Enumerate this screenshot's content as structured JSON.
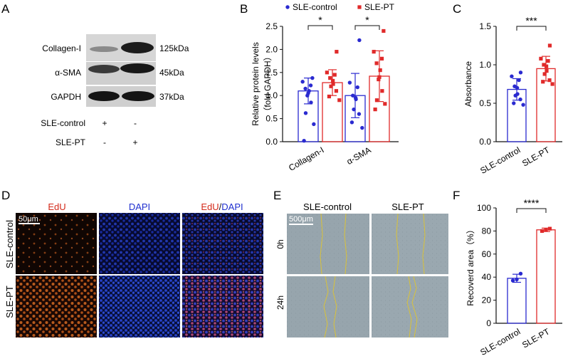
{
  "panels": {
    "a": {
      "label": "A",
      "bands": [
        {
          "name": "Collagen-I",
          "size": "125kDa"
        },
        {
          "name": "α-SMA",
          "size": "45kDa"
        },
        {
          "name": "GAPDH",
          "size": "37kDa"
        }
      ],
      "groups": [
        {
          "name": "SLE-control",
          "lane1": "+",
          "lane2": "-"
        },
        {
          "name": "SLE-PT",
          "lane1": "-",
          "lane2": "+"
        }
      ]
    },
    "b": {
      "label": "B"
    },
    "c": {
      "label": "C"
    },
    "d": {
      "label": "D",
      "col_titles": {
        "edu": "EdU",
        "dapi": "DAPI",
        "merge_edu": "EdU",
        "merge_sep": "/",
        "merge_dapi": "DAPI"
      },
      "row_labels": [
        "SLE-control",
        "SLE-PT"
      ],
      "scale_bar": "50μm"
    },
    "e": {
      "label": "E",
      "col_titles": [
        "SLE-control",
        "SLE-PT"
      ],
      "row_labels": [
        "0h",
        "24h"
      ],
      "scale_bar": "500μm"
    },
    "f": {
      "label": "F"
    }
  },
  "colors": {
    "control": "#2a2ad0",
    "pt": "#e02a2a",
    "edu": "#d42a1a",
    "dapi": "#1f2fcf",
    "wound_line": "#d9c23a"
  },
  "chart_data": [
    {
      "panel": "B",
      "type": "bar",
      "categories": [
        "Collagen-I",
        "α-SMA"
      ],
      "ylabel": "Relative protein levels",
      "ylabel2": "（fold GAPDH）",
      "ylim": [
        0,
        2.5
      ],
      "yticks": [
        "0.0",
        "0.5",
        "1.0",
        "1.5",
        "2.0",
        "2.5"
      ],
      "legend": "top",
      "series": [
        {
          "name": "SLE-control",
          "values": [
            1.1,
            1.0
          ],
          "sd": [
            0.28,
            0.48
          ],
          "points": [
            [
              1.38,
              1.3,
              1.22,
              1.15,
              1.1,
              1.05,
              1.0,
              0.85,
              0.62,
              0.38,
              0.02
            ],
            [
              2.2,
              1.28,
              1.18,
              1.0,
              0.95,
              0.92,
              0.7,
              0.6,
              0.42,
              0.3
            ]
          ]
        },
        {
          "name": "SLE-PT",
          "values": [
            1.28,
            1.42
          ],
          "sd": [
            0.28,
            0.55
          ],
          "points": [
            [
              1.95,
              1.5,
              1.45,
              1.38,
              1.32,
              1.25,
              1.2,
              1.1,
              0.98,
              0.9
            ],
            [
              2.4,
              1.95,
              1.8,
              1.7,
              1.55,
              1.4,
              1.35,
              1.1,
              0.9,
              0.82,
              0.7
            ]
          ]
        }
      ],
      "significance": [
        "*",
        "*"
      ]
    },
    {
      "panel": "C",
      "type": "bar",
      "categories": [
        "SLE-control",
        "SLE-PT"
      ],
      "ylabel": "Absorbance",
      "ylim": [
        0,
        1.5
      ],
      "yticks": [
        "0.0",
        "0.5",
        "1.0",
        "1.5"
      ],
      "values": [
        0.68,
        0.95
      ],
      "sd": [
        0.14,
        0.16
      ],
      "points": [
        [
          0.9,
          0.85,
          0.8,
          0.72,
          0.7,
          0.62,
          0.6,
          0.55,
          0.5,
          0.48
        ],
        [
          1.25,
          1.08,
          1.05,
          1.0,
          0.98,
          0.92,
          0.88,
          0.8,
          0.78,
          0.75
        ]
      ],
      "significance": "***"
    },
    {
      "panel": "F",
      "type": "bar",
      "categories": [
        "SLE-control",
        "SLE-PT"
      ],
      "ylabel": "Recoverd area（%）",
      "ylim": [
        0,
        100
      ],
      "yticks": [
        "0",
        "20",
        "40",
        "60",
        "80",
        "100"
      ],
      "values": [
        39,
        81
      ],
      "sd": [
        3.5,
        1.5
      ],
      "points": [
        [
          43,
          38,
          37
        ],
        [
          82,
          81,
          80
        ]
      ],
      "significance": "****"
    }
  ]
}
